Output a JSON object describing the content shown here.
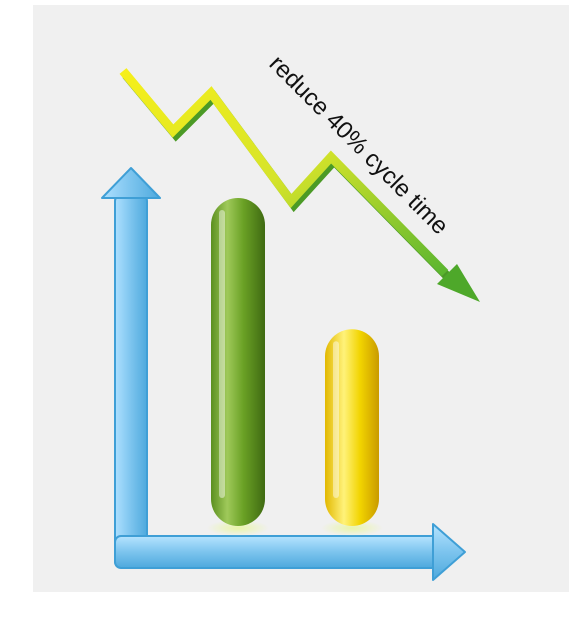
{
  "chart_data": {
    "type": "bar",
    "title": "",
    "xlabel": "",
    "ylabel": "",
    "categories": [
      "",
      ""
    ],
    "values": [
      100,
      60
    ],
    "ylim": [
      0,
      100
    ],
    "grid": false,
    "bar_colors": [
      "#6aa125",
      "#f2d400"
    ],
    "axis_color": "#7cc4ee",
    "trend": {
      "annotation": "reduce 40% cycle time",
      "colors": [
        "#f6ef1a",
        "#5ab52f"
      ],
      "direction": "down"
    }
  }
}
